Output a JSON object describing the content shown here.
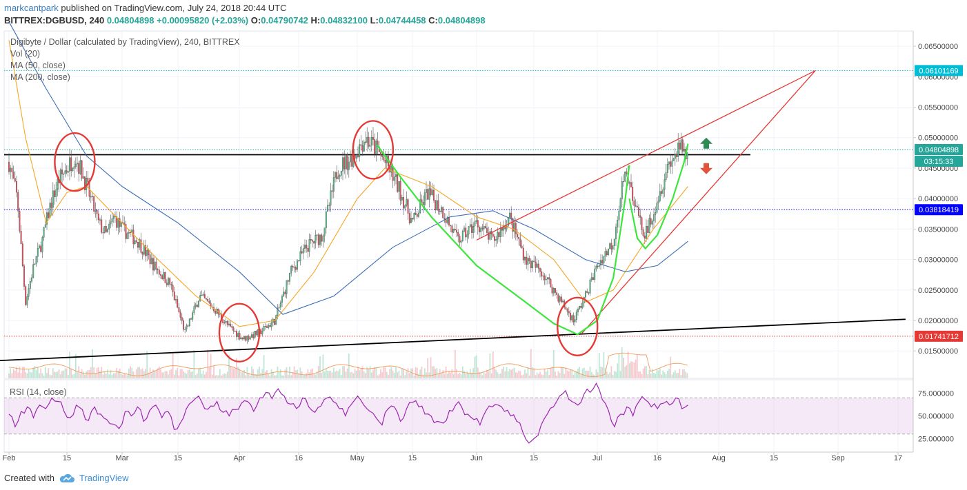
{
  "header": {
    "author": "markcantpark",
    "published": "published on TradingView.com, July 24, 2018 20:44 UTC",
    "symbol": "BITTREX:DGBUSD, 240",
    "last": "0.04804898",
    "change": "+0.00095820 (+2.03%)",
    "o_label": "O:",
    "o_value": "0.04790742",
    "h_label": "H:",
    "h_value": "0.04832100",
    "l_label": "L:",
    "l_value": "0.04744458",
    "c_label": "C:",
    "c_value": "0.04804898"
  },
  "legend": {
    "title": "Digibyte / Dollar (calculated by TradingView), 240, BITTREX",
    "vol": "Vol (20)",
    "ma50": "MA (50, close)",
    "ma200": "MA (200, close)"
  },
  "rsi_label": "RSI (14, close)",
  "footer": {
    "created_with": "Created with",
    "brand": "TradingView"
  },
  "chart_data": [
    {
      "type": "candlestick",
      "title": "Digibyte / Dollar (calculated by TradingView), 240, BITTREX",
      "timeframe": "240",
      "ylim": [
        0.0105,
        0.0675
      ],
      "y_ticks": [
        "0.06500000",
        "0.06000000",
        "0.05500000",
        "0.05000000",
        "0.04500000",
        "0.04000000",
        "0.03500000",
        "0.03000000",
        "0.02500000",
        "0.02000000",
        "0.01500000"
      ],
      "x_ticks": [
        "Feb",
        "15",
        "Mar",
        "15",
        "Apr",
        "16",
        "May",
        "15",
        "Jun",
        "15",
        "Jul",
        "16",
        "Aug",
        "15",
        "Sep",
        "17"
      ],
      "price_tags": [
        {
          "value": "0.06101169",
          "color": "#00bcd4"
        },
        {
          "value": "0.04804898",
          "color": "#26a69a"
        },
        {
          "value": "03:15:33",
          "color": "#26a69a"
        },
        {
          "value": "0.03818419",
          "color": "#0000ff"
        },
        {
          "value": "0.01741712",
          "color": "#e53935"
        }
      ],
      "horizontal_levels": [
        {
          "value": 0.06101169,
          "color": "#00bcd4",
          "style": "dotted"
        },
        {
          "value": 0.04804898,
          "color": "#26a69a",
          "style": "dotted"
        },
        {
          "value": 0.03818419,
          "color": "#0000ff",
          "style": "dotted"
        },
        {
          "value": 0.01741712,
          "color": "#e53935",
          "style": "dotted"
        },
        {
          "value": 0.0472,
          "color": "#000000",
          "style": "solid"
        }
      ],
      "close_path": [
        [
          "Feb 1",
          0.046
        ],
        [
          "Feb 3",
          0.04
        ],
        [
          "Feb 5",
          0.023
        ],
        [
          "Feb 7",
          0.029
        ],
        [
          "Feb 9",
          0.033
        ],
        [
          "Feb 11",
          0.039
        ],
        [
          "Feb 13",
          0.043
        ],
        [
          "Feb 15",
          0.045
        ],
        [
          "Feb 17",
          0.047
        ],
        [
          "Feb 19",
          0.044
        ],
        [
          "Feb 21",
          0.04
        ],
        [
          "Feb 23",
          0.036
        ],
        [
          "Feb 25",
          0.034
        ],
        [
          "Feb 27",
          0.037
        ],
        [
          "Mar 1",
          0.035
        ],
        [
          "Mar 5",
          0.033
        ],
        [
          "Mar 9",
          0.029
        ],
        [
          "Mar 13",
          0.026
        ],
        [
          "Mar 17",
          0.018
        ],
        [
          "Mar 21",
          0.024
        ],
        [
          "Mar 25",
          0.022
        ],
        [
          "Mar 29",
          0.019
        ],
        [
          "Apr 2",
          0.017
        ],
        [
          "Apr 6",
          0.018
        ],
        [
          "Apr 10",
          0.02
        ],
        [
          "Apr 14",
          0.028
        ],
        [
          "Apr 18",
          0.032
        ],
        [
          "Apr 22",
          0.034
        ],
        [
          "Apr 26",
          0.045
        ],
        [
          "Apr 30",
          0.047
        ],
        [
          "May 3",
          0.05
        ],
        [
          "May 6",
          0.048
        ],
        [
          "May 9",
          0.045
        ],
        [
          "May 12",
          0.041
        ],
        [
          "May 15",
          0.036
        ],
        [
          "May 19",
          0.041
        ],
        [
          "May 23",
          0.038
        ],
        [
          "May 27",
          0.033
        ],
        [
          "Jun 1",
          0.036
        ],
        [
          "Jun 5",
          0.033
        ],
        [
          "Jun 9",
          0.037
        ],
        [
          "Jun 13",
          0.03
        ],
        [
          "Jun 17",
          0.028
        ],
        [
          "Jun 21",
          0.024
        ],
        [
          "Jun 25",
          0.02
        ],
        [
          "Jun 28",
          0.024
        ],
        [
          "Jul 1",
          0.029
        ],
        [
          "Jul 5",
          0.033
        ],
        [
          "Jul 8",
          0.046
        ],
        [
          "Jul 10",
          0.039
        ],
        [
          "Jul 13",
          0.034
        ],
        [
          "Jul 16",
          0.04
        ],
        [
          "Jul 19",
          0.046
        ],
        [
          "Jul 22",
          0.048
        ],
        [
          "Jul 24",
          0.048
        ]
      ],
      "ma50_path": [
        [
          "Feb 1",
          0.066
        ],
        [
          "Feb 5",
          0.05
        ],
        [
          "Feb 10",
          0.036
        ],
        [
          "Feb 15",
          0.041
        ],
        [
          "Feb 20",
          0.042
        ],
        [
          "Mar 1",
          0.036
        ],
        [
          "Mar 10",
          0.03
        ],
        [
          "Mar 20",
          0.024
        ],
        [
          "Apr 1",
          0.019
        ],
        [
          "Apr 10",
          0.02
        ],
        [
          "Apr 20",
          0.028
        ],
        [
          "May 1",
          0.04
        ],
        [
          "May 8",
          0.045
        ],
        [
          "May 20",
          0.042
        ],
        [
          "Jun 1",
          0.037
        ],
        [
          "Jun 10",
          0.035
        ],
        [
          "Jun 20",
          0.03
        ],
        [
          "Jun 28",
          0.023
        ],
        [
          "Jul 5",
          0.025
        ],
        [
          "Jul 15",
          0.035
        ],
        [
          "Jul 24",
          0.042
        ]
      ],
      "ma200_path": [
        [
          "Feb 1",
          0.069
        ],
        [
          "Feb 10",
          0.058
        ],
        [
          "Feb 20",
          0.047
        ],
        [
          "Mar 1",
          0.042
        ],
        [
          "Mar 15",
          0.036
        ],
        [
          "Apr 1",
          0.028
        ],
        [
          "Apr 12",
          0.021
        ],
        [
          "Apr 25",
          0.024
        ],
        [
          "May 10",
          0.032
        ],
        [
          "May 25",
          0.037
        ],
        [
          "Jun 5",
          0.038
        ],
        [
          "Jun 15",
          0.035
        ],
        [
          "Jun 28",
          0.03
        ],
        [
          "Jul 8",
          0.028
        ],
        [
          "Jul 16",
          0.029
        ],
        [
          "Jul 24",
          0.033
        ]
      ],
      "annotations": [
        {
          "type": "ellipse",
          "color": "#e53935",
          "at": [
            "Feb 17",
            0.046
          ]
        },
        {
          "type": "ellipse",
          "color": "#e53935",
          "at": [
            "Apr 1",
            0.018
          ]
        },
        {
          "type": "ellipse",
          "color": "#e53935",
          "at": [
            "May 5",
            0.048
          ]
        },
        {
          "type": "ellipse",
          "color": "#e53935",
          "at": [
            "Jun 26",
            0.019
          ]
        },
        {
          "type": "cup-curve",
          "color": "#3ce63c"
        },
        {
          "type": "handle-curve",
          "color": "#3ce63c"
        },
        {
          "type": "rising-wedge",
          "color": "#e53935",
          "apex": [
            "Aug 26",
            0.061
          ]
        },
        {
          "type": "trendline",
          "color": "#000000",
          "from": [
            "Jan 29",
            0.0134
          ],
          "to": [
            "Sep 19",
            0.0202
          ]
        },
        {
          "type": "arrow-up",
          "color": "#2e8b57"
        },
        {
          "type": "arrow-down",
          "color": "#e0533c"
        }
      ]
    },
    {
      "type": "line",
      "title": "RSI (14, close)",
      "ylim": [
        10,
        90
      ],
      "y_ticks": [
        "75.000000",
        "50.000000",
        "25.000000"
      ],
      "bands": [
        30,
        70
      ],
      "series": [
        {
          "values": [
            52,
            38,
            55,
            60,
            48,
            62,
            58,
            70,
            66,
            55,
            48,
            62,
            57,
            45,
            60,
            52,
            46,
            41,
            36,
            55,
            50,
            60,
            44,
            56,
            62,
            48,
            55,
            35,
            42,
            58,
            66,
            72,
            58,
            61,
            66,
            54,
            50,
            57,
            64,
            66,
            55,
            70,
            76,
            69,
            80,
            72,
            63,
            58,
            70,
            60,
            54,
            61,
            70,
            66,
            58,
            50,
            63,
            72,
            62,
            55,
            48,
            40,
            58,
            60,
            44,
            58,
            65,
            60,
            52,
            50,
            44,
            42,
            56,
            62,
            60,
            52,
            46,
            40,
            56,
            60,
            62,
            55,
            50,
            44,
            32,
            20,
            26,
            40,
            52,
            60,
            72,
            78,
            66,
            62,
            74,
            76,
            86,
            68,
            56,
            38,
            52,
            60,
            50,
            66,
            68,
            60,
            58,
            64,
            62,
            70,
            58,
            62
          ]
        }
      ]
    },
    {
      "type": "bar",
      "title": "Vol (20)",
      "series": [
        {
          "name": "Vol (20)",
          "values": []
        }
      ]
    }
  ]
}
